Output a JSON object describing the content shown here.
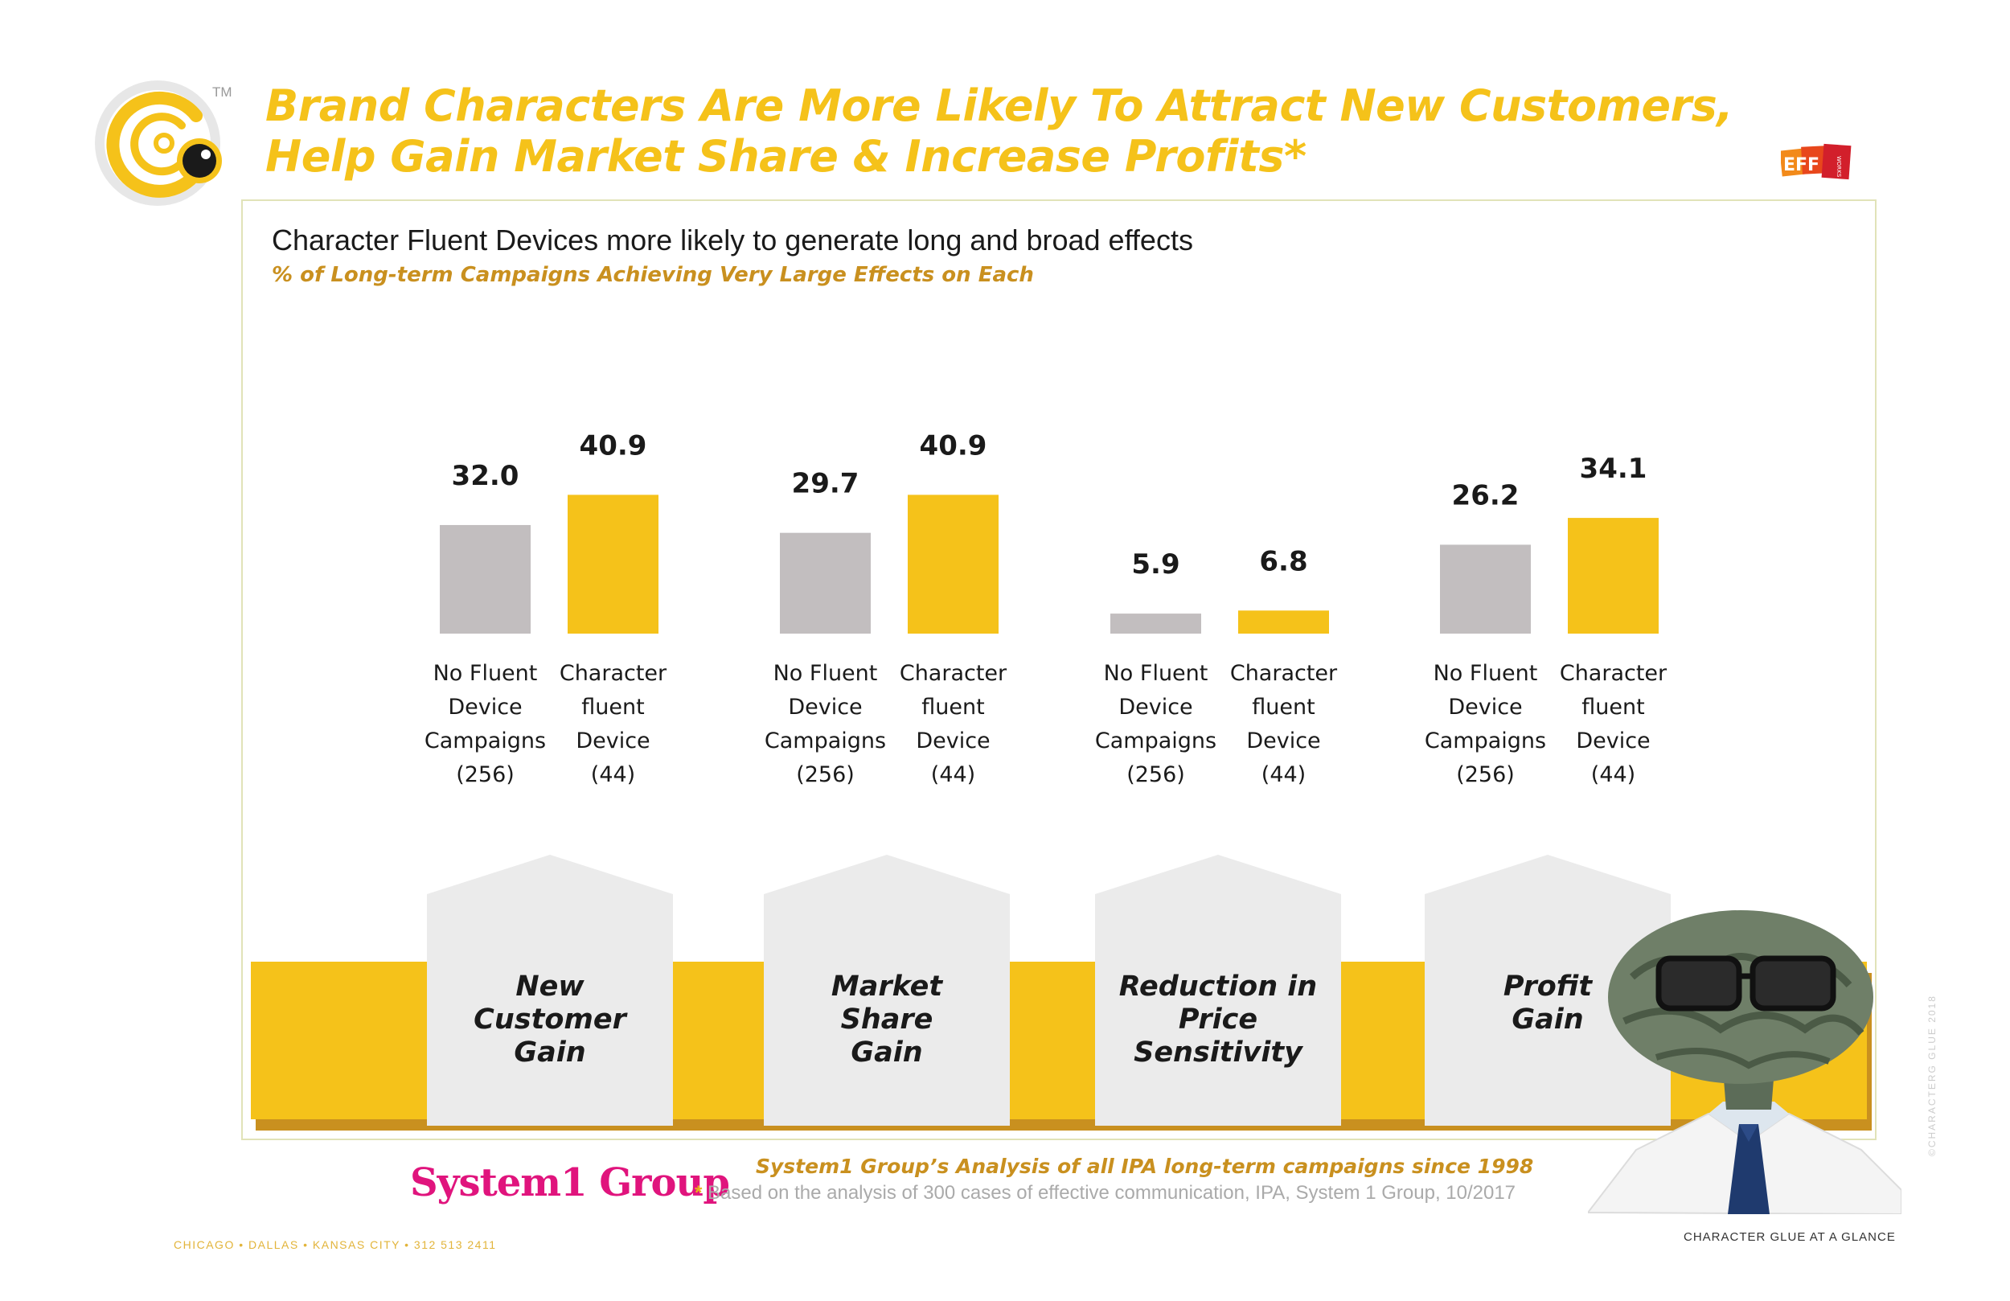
{
  "header": {
    "title_line1": "Brand Characters Are More Likely To Attract New Customers,",
    "title_line2": "Help Gain Market Share & Increase Profits*",
    "trademark": "TM",
    "partner_logo_text": "EFF",
    "partner_logo_small": "WORKS"
  },
  "panel": {
    "subtitle": "Character Fluent Devices more likely to generate long and broad effects",
    "measure": "% of Long-term Campaigns Achieving Very Large Effects on Each"
  },
  "chart_data": {
    "type": "bar",
    "title": "Character Fluent Devices more likely to generate long and broad effects",
    "ylabel": "% of Long-term Campaigns Achieving Very Large Effects on Each",
    "ylim": [
      0,
      45
    ],
    "grid": false,
    "categories": [
      "New Customer Gain",
      "Market Share Gain",
      "Reduction in Price Sensitivity",
      "Profit Gain"
    ],
    "category_titles": [
      [
        "New",
        "Customer",
        "Gain"
      ],
      [
        "Market",
        "Share",
        "Gain"
      ],
      [
        "Reduction in",
        "Price",
        "Sensitivity"
      ],
      [
        "Profit",
        "Gain"
      ]
    ],
    "series": [
      {
        "name": "No Fluent Device Campaigns (256)",
        "label_lines": [
          "No Fluent",
          "Device",
          "Campaigns",
          "(256)"
        ],
        "color": "#c2bebf",
        "values": [
          32.0,
          29.7,
          5.9,
          26.2
        ],
        "labels": [
          "32.0",
          "29.7",
          "5.9",
          "26.2"
        ]
      },
      {
        "name": "Character fluent Device (44)",
        "label_lines": [
          "Character",
          "fluent",
          "Device",
          "(44)"
        ],
        "color": "#f5c21a",
        "values": [
          40.9,
          40.9,
          6.8,
          34.1
        ],
        "labels": [
          "40.9",
          "40.9",
          "6.8",
          "34.1"
        ]
      }
    ]
  },
  "footer": {
    "brand": "System1 Group",
    "analysis": "System1 Group’s Analysis of all IPA long-term campaigns since 1998",
    "footnote_star": "*",
    "footnote": "Based on the analysis of 300 cases of effective communication, IPA, System 1 Group, 10/2017",
    "contact": "CHICAGO • DALLAS • KANSAS CITY • 312 513 2411",
    "tagline": "CHARACTER GLUE AT A GLANCE",
    "copyright": "©CHARACTERG GLUE 2018"
  },
  "colors": {
    "gold": "#f5c21a",
    "gray_bar": "#c2bebf",
    "house": "#ebebeb",
    "accent_text": "#c9901f",
    "magenta": "#e0147d"
  }
}
